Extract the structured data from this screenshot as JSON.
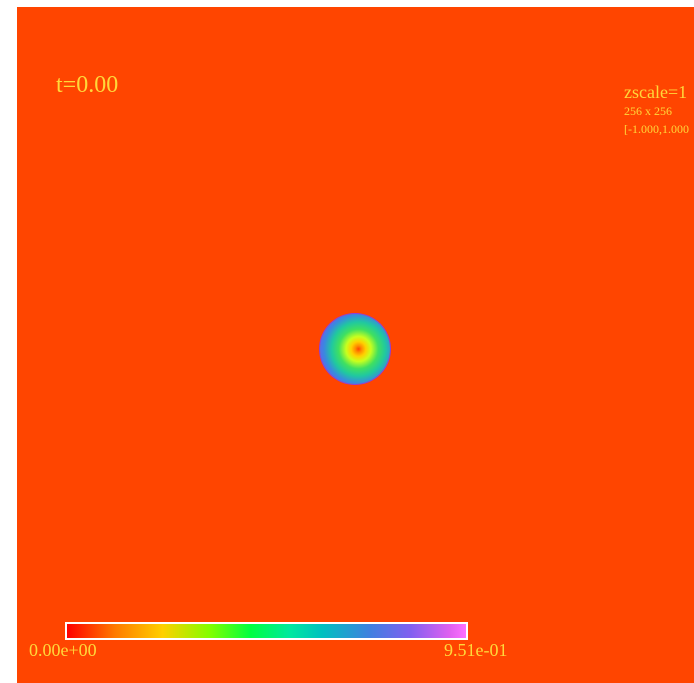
{
  "time_label": "t=0.00",
  "info": {
    "zscale": "zscale=1",
    "grid_size": "256 x 256",
    "range": "[-1.000,1.000"
  },
  "colorbar": {
    "min_label": "0.00e+00",
    "max_label": "9.51e-01"
  },
  "colors": {
    "background": "#ff4500",
    "text": "#ffd83a",
    "colorbar_border": "#ffffff"
  }
}
